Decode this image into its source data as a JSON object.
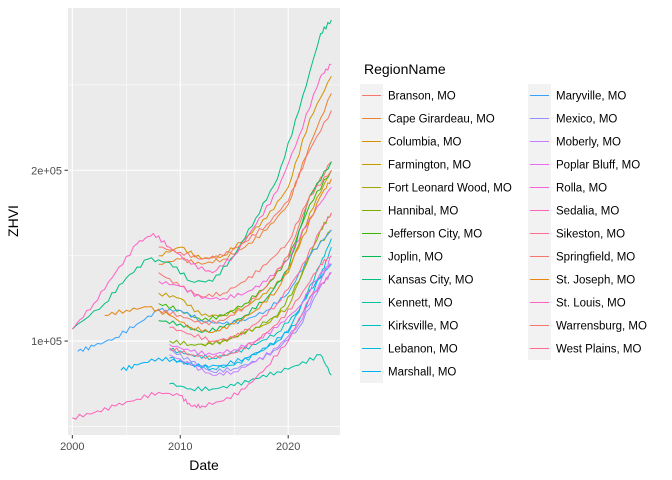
{
  "chart_data": {
    "type": "line",
    "xlabel": "Date",
    "ylabel": "ZHVI",
    "xlim": [
      1999.6,
      2024.8
    ],
    "ylim": [
      45000,
      295000
    ],
    "xticks": [
      2000,
      2010,
      2020
    ],
    "xtick_labels": [
      "2000",
      "2010",
      "2020"
    ],
    "yticks": [
      100000,
      200000
    ],
    "ytick_labels": [
      "1e+05",
      "2e+05"
    ],
    "grid": true,
    "legend": {
      "title": "RegionName",
      "position": "right",
      "columns": 2
    },
    "series": [
      {
        "name": "Branson, MO",
        "color": "#F8766D",
        "x": [
          2008,
          2010,
          2012,
          2014,
          2016,
          2018,
          2020,
          2022,
          2024
        ],
        "y": [
          140000,
          132000,
          126000,
          128000,
          135000,
          145000,
          158000,
          185000,
          205000
        ]
      },
      {
        "name": "Cape Girardeau, MO",
        "color": "#EA8331",
        "x": [
          2008,
          2010,
          2012,
          2014,
          2016,
          2018,
          2020,
          2022,
          2024
        ],
        "y": [
          145000,
          148000,
          145000,
          148000,
          155000,
          165000,
          180000,
          215000,
          245000
        ]
      },
      {
        "name": "Columbia, MO",
        "color": "#D89000",
        "x": [
          2008,
          2010,
          2012,
          2014,
          2016,
          2018,
          2020,
          2022,
          2024
        ],
        "y": [
          150000,
          155000,
          148000,
          150000,
          160000,
          172000,
          190000,
          230000,
          255000
        ]
      },
      {
        "name": "Farmington, MO",
        "color": "#C09B00",
        "x": [
          2008,
          2010,
          2012,
          2014,
          2016,
          2018,
          2020,
          2022,
          2024
        ],
        "y": [
          128000,
          125000,
          115000,
          115000,
          120000,
          128000,
          140000,
          175000,
          200000
        ]
      },
      {
        "name": "Fort Leonard Wood, MO",
        "color": "#A3A500",
        "x": [
          2012,
          2014,
          2016,
          2018,
          2020,
          2022,
          2024
        ],
        "y": [
          98000,
          100000,
          105000,
          110000,
          120000,
          150000,
          165000
        ]
      },
      {
        "name": "Hannibal, MO",
        "color": "#7CAE00",
        "x": [
          2009,
          2011,
          2013,
          2015,
          2017,
          2019,
          2021,
          2023,
          2024
        ],
        "y": [
          100000,
          98000,
          98000,
          102000,
          108000,
          115000,
          135000,
          165000,
          175000
        ]
      },
      {
        "name": "Jefferson City, MO",
        "color": "#39B600",
        "x": [
          2008,
          2010,
          2012,
          2014,
          2016,
          2018,
          2020,
          2022,
          2024
        ],
        "y": [
          122000,
          118000,
          112000,
          115000,
          122000,
          132000,
          148000,
          180000,
          200000
        ]
      },
      {
        "name": "Joplin, MO",
        "color": "#00BB4E",
        "x": [
          2008,
          2010,
          2012,
          2014,
          2016,
          2018,
          2020,
          2022,
          2024
        ],
        "y": [
          112000,
          110000,
          105000,
          108000,
          115000,
          125000,
          142000,
          185000,
          205000
        ]
      },
      {
        "name": "Kansas City, MO",
        "color": "#00BF7D",
        "x": [
          2000,
          2003,
          2005,
          2007,
          2009,
          2011,
          2013,
          2015,
          2017,
          2019,
          2021,
          2023,
          2024
        ],
        "y": [
          107000,
          122000,
          137000,
          148000,
          146000,
          135000,
          135000,
          150000,
          172000,
          195000,
          235000,
          280000,
          288000
        ]
      },
      {
        "name": "Kennett, MO",
        "color": "#00C1A3",
        "x": [
          2009,
          2011,
          2013,
          2015,
          2017,
          2019,
          2021,
          2023,
          2024
        ],
        "y": [
          75000,
          72000,
          72000,
          74000,
          78000,
          82000,
          86000,
          92000,
          80000
        ]
      },
      {
        "name": "Kirksville, MO",
        "color": "#00BFC4",
        "x": [
          2009,
          2011,
          2013,
          2015,
          2017,
          2019,
          2021,
          2023,
          2024
        ],
        "y": [
          95000,
          92000,
          90000,
          93000,
          98000,
          105000,
          118000,
          145000,
          160000
        ]
      },
      {
        "name": "Lebanon, MO",
        "color": "#00BAE0",
        "x": [
          2009,
          2011,
          2013,
          2015,
          2017,
          2019,
          2021,
          2023,
          2024
        ],
        "y": [
          90000,
          86000,
          84000,
          86000,
          92000,
          100000,
          112000,
          138000,
          155000
        ]
      },
      {
        "name": "Marshall, MO",
        "color": "#00B0F6",
        "x": [
          2004.5,
          2006,
          2008,
          2010,
          2012,
          2014,
          2016,
          2018,
          2020,
          2022,
          2024
        ],
        "y": [
          83000,
          86000,
          90000,
          88000,
          85000,
          86000,
          90000,
          96000,
          106000,
          130000,
          145000
        ]
      },
      {
        "name": "Maryville, MO",
        "color": "#35A2FF",
        "x": [
          2000.5,
          2002,
          2004,
          2006,
          2008,
          2010,
          2012,
          2014,
          2016,
          2018,
          2020,
          2022,
          2024
        ],
        "y": [
          94000,
          97000,
          102000,
          110000,
          118000,
          118000,
          112000,
          110000,
          112000,
          118000,
          128000,
          150000,
          165000
        ]
      },
      {
        "name": "Mexico, MO",
        "color": "#9590FF",
        "x": [
          2009,
          2011,
          2013,
          2015,
          2017,
          2019,
          2021,
          2023,
          2024
        ],
        "y": [
          95000,
          88000,
          82000,
          84000,
          88000,
          95000,
          108000,
          132000,
          140000
        ]
      },
      {
        "name": "Moberly, MO",
        "color": "#C77CFF",
        "x": [
          2009,
          2011,
          2013,
          2015,
          2017,
          2019,
          2021,
          2023,
          2024
        ],
        "y": [
          92000,
          86000,
          80000,
          82000,
          88000,
          96000,
          110000,
          135000,
          150000
        ]
      },
      {
        "name": "Poplar Bluff, MO",
        "color": "#E76BF3",
        "x": [
          2009,
          2011,
          2013,
          2015,
          2017,
          2019,
          2021,
          2023,
          2024
        ],
        "y": [
          98000,
          94000,
          92000,
          95000,
          100000,
          108000,
          120000,
          140000,
          145000
        ]
      },
      {
        "name": "Rolla, MO",
        "color": "#FA62DB",
        "x": [
          2008,
          2010,
          2012,
          2014,
          2016,
          2018,
          2020,
          2022,
          2024
        ],
        "y": [
          135000,
          132000,
          125000,
          125000,
          128000,
          135000,
          148000,
          172000,
          190000
        ]
      },
      {
        "name": "Sedalia, MO",
        "color": "#FF62BC",
        "x": [
          2000,
          2002,
          2004,
          2006,
          2008,
          2010,
          2011,
          2012,
          2014,
          2016,
          2018,
          2020,
          2022,
          2024
        ],
        "y": [
          55000,
          58000,
          62000,
          66000,
          70000,
          68000,
          62000,
          62000,
          65000,
          72000,
          85000,
          100000,
          125000,
          140000
        ]
      },
      {
        "name": "Sikeston, MO",
        "color": "#FF6C91",
        "x": [
          2009,
          2011,
          2013,
          2015,
          2017,
          2019,
          2021,
          2023,
          2024
        ],
        "y": [
          96000,
          92000,
          90000,
          93000,
          100000,
          110000,
          125000,
          145000,
          150000
        ]
      },
      {
        "name": "Springfield, MO",
        "color": "#F8766D",
        "x": [
          2008,
          2010,
          2012,
          2014,
          2016,
          2018,
          2020,
          2022,
          2024
        ],
        "y": [
          118000,
          115000,
          110000,
          112000,
          120000,
          132000,
          150000,
          185000,
          200000
        ]
      },
      {
        "name": "St. Joseph, MO",
        "color": "#E68613",
        "x": [
          2003,
          2005,
          2007,
          2009,
          2011,
          2013,
          2015,
          2017,
          2019,
          2021,
          2023,
          2024
        ],
        "y": [
          115000,
          118000,
          120000,
          115000,
          108000,
          105000,
          110000,
          118000,
          130000,
          155000,
          185000,
          195000
        ]
      },
      {
        "name": "St. Louis, MO",
        "color": "#FF61C3",
        "x": [
          2000,
          2002,
          2004,
          2006,
          2007.5,
          2009,
          2011,
          2013,
          2015,
          2017,
          2019,
          2021,
          2023,
          2024
        ],
        "y": [
          107000,
          122000,
          140000,
          157000,
          163000,
          155000,
          145000,
          140000,
          150000,
          168000,
          188000,
          220000,
          255000,
          262000
        ]
      },
      {
        "name": "Warrensburg, MO",
        "color": "#F8766D",
        "x": [
          2008,
          2010,
          2012,
          2014,
          2016,
          2018,
          2020,
          2022,
          2024
        ],
        "y": [
          155000,
          152000,
          148000,
          150000,
          158000,
          168000,
          182000,
          212000,
          235000
        ]
      },
      {
        "name": "West Plains, MO",
        "color": "#FF6C91",
        "x": [
          2009,
          2011,
          2013,
          2015,
          2017,
          2019,
          2021,
          2023,
          2024
        ],
        "y": [
          108000,
          104000,
          100000,
          102000,
          110000,
          122000,
          140000,
          165000,
          175000
        ]
      }
    ]
  }
}
